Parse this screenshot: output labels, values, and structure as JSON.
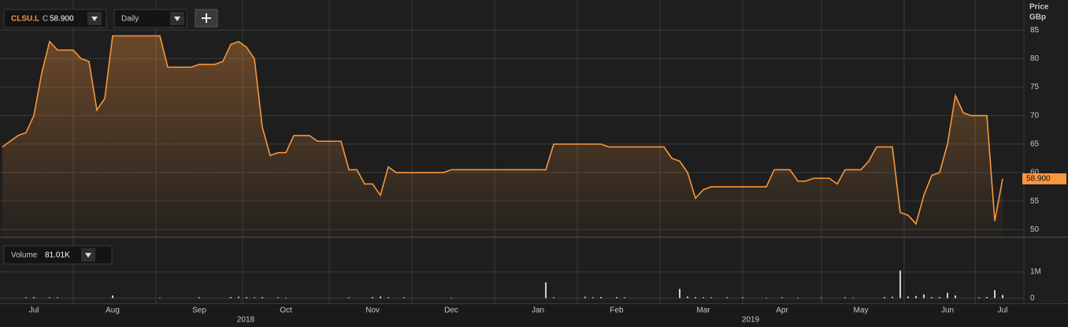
{
  "chart_data": [
    {
      "type": "line",
      "interval": "Daily",
      "change_prefix": "C",
      "last_value_label": "58.900",
      "y_axis_label": [
        "Price",
        "GBp"
      ],
      "year_labels": [
        "2018",
        "2019"
      ],
      "categories": [
        null,
        null,
        null,
        null,
        "Jul",
        null,
        null,
        null,
        null,
        null,
        null,
        null,
        null,
        null,
        "Aug",
        null,
        null,
        null,
        null,
        null,
        null,
        null,
        null,
        null,
        null,
        "Sep",
        null,
        null,
        null,
        null,
        null,
        null,
        null,
        null,
        null,
        null,
        "Oct",
        null,
        null,
        null,
        null,
        null,
        null,
        null,
        null,
        null,
        null,
        "Nov",
        null,
        null,
        null,
        null,
        null,
        null,
        null,
        null,
        null,
        "Dec",
        null,
        null,
        null,
        null,
        null,
        null,
        null,
        null,
        null,
        null,
        "Jan",
        null,
        null,
        null,
        null,
        null,
        null,
        null,
        null,
        null,
        "Feb",
        null,
        null,
        null,
        null,
        null,
        null,
        null,
        null,
        null,
        null,
        "Mar",
        null,
        null,
        null,
        null,
        null,
        null,
        null,
        null,
        null,
        "Apr",
        null,
        null,
        null,
        null,
        null,
        null,
        null,
        null,
        null,
        "May",
        null,
        null,
        null,
        null,
        null,
        null,
        null,
        null,
        null,
        null,
        "Jun",
        null,
        null,
        null,
        null,
        null,
        null,
        "Jul"
      ],
      "series": [
        {
          "name": "CLSU.L",
          "color": "#f7963d",
          "values": [
            64.5,
            65.5,
            66.5,
            67,
            70,
            77.5,
            83,
            81.5,
            81.5,
            81.5,
            80,
            79.5,
            71,
            73,
            84,
            84,
            84,
            84,
            84,
            84,
            84,
            78.5,
            78.5,
            78.5,
            78.5,
            79,
            79,
            79,
            79.5,
            82.5,
            83,
            82,
            80,
            68,
            63,
            63.5,
            63.5,
            66.5,
            66.5,
            66.5,
            65.5,
            65.5,
            65.5,
            65.5,
            60.5,
            60.5,
            58,
            58,
            56,
            61,
            60,
            60,
            60,
            60,
            60,
            60,
            60,
            60.5,
            60.5,
            60.5,
            60.5,
            60.5,
            60.5,
            60.5,
            60.5,
            60.5,
            60.5,
            60.5,
            60.5,
            60.5,
            65,
            65,
            65,
            65,
            65,
            65,
            65,
            64.5,
            64.5,
            64.5,
            64.5,
            64.5,
            64.5,
            64.5,
            64.5,
            62.5,
            62,
            60,
            55.5,
            57,
            57.5,
            57.5,
            57.5,
            57.5,
            57.5,
            57.5,
            57.5,
            57.5,
            60.5,
            60.5,
            60.5,
            58.5,
            58.5,
            59,
            59,
            59,
            58,
            60.5,
            60.5,
            60.5,
            62,
            64.5,
            64.5,
            64.5,
            53,
            52.5,
            51,
            56,
            59.5,
            60,
            65,
            73.5,
            70.5,
            70,
            70,
            70,
            51.5,
            58.9
          ]
        }
      ],
      "ylim": [
        48.8,
        89.6
      ],
      "yticks": [
        50,
        55,
        60,
        65,
        70,
        75,
        80,
        85
      ],
      "grid": true
    },
    {
      "type": "bar",
      "value_label": "81.01K",
      "series": [
        {
          "name": "Volume",
          "color": "#cfcfcf",
          "values": [
            0,
            0,
            0,
            30000,
            40000,
            0,
            30000,
            30000,
            0,
            0,
            0,
            0,
            0,
            0,
            100000,
            0,
            0,
            0,
            0,
            0,
            20000,
            0,
            0,
            0,
            0,
            30000,
            0,
            0,
            0,
            40000,
            50000,
            40000,
            30000,
            40000,
            0,
            30000,
            20000,
            0,
            0,
            0,
            0,
            0,
            0,
            0,
            30000,
            0,
            0,
            40000,
            60000,
            30000,
            0,
            30000,
            0,
            0,
            0,
            0,
            0,
            20000,
            0,
            0,
            0,
            0,
            0,
            0,
            0,
            0,
            0,
            0,
            0,
            600000,
            30000,
            0,
            0,
            0,
            50000,
            30000,
            40000,
            0,
            40000,
            30000,
            0,
            0,
            0,
            0,
            0,
            0,
            350000,
            60000,
            40000,
            30000,
            30000,
            0,
            30000,
            0,
            30000,
            0,
            0,
            20000,
            0,
            30000,
            0,
            20000,
            0,
            0,
            20000,
            0,
            0,
            30000,
            20000,
            0,
            0,
            0,
            40000,
            50000,
            1050000,
            60000,
            80000,
            140000,
            40000,
            40000,
            200000,
            100000,
            0,
            0,
            30000,
            40000,
            300000,
            120000
          ]
        }
      ],
      "ylim": [
        -200000,
        2200000
      ],
      "yticks": [
        0,
        {
          "value": 1000000,
          "label": "1M"
        }
      ],
      "grid": true
    }
  ]
}
